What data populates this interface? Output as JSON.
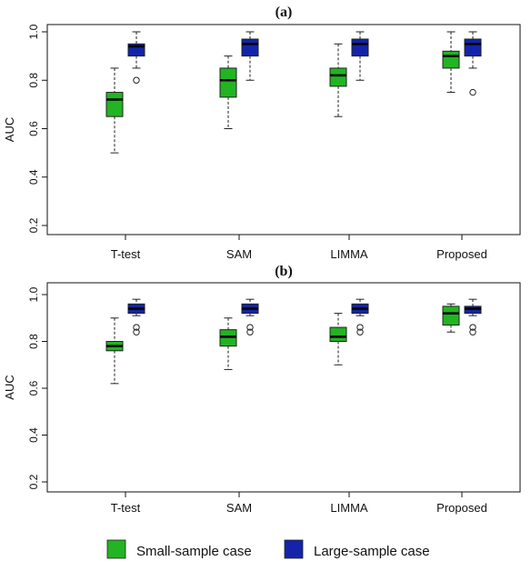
{
  "chart_data": [
    {
      "type": "boxplot",
      "title": "(a)",
      "xlabel": "",
      "ylabel": "AUC",
      "ylim": [
        0.2,
        1.0
      ],
      "yticks": [
        "0.2",
        "0.4",
        "0.6",
        "0.8",
        "1.0"
      ],
      "categories": [
        "T-test",
        "SAM",
        "LIMMA",
        "Proposed"
      ],
      "series": [
        {
          "name": "Small-sample case",
          "color": "#22b422",
          "boxes": [
            {
              "whisker_low": 0.5,
              "q1": 0.65,
              "median": 0.72,
              "q3": 0.75,
              "whisker_high": 0.85,
              "outliers": []
            },
            {
              "whisker_low": 0.6,
              "q1": 0.73,
              "median": 0.8,
              "q3": 0.85,
              "whisker_high": 0.9,
              "outliers": []
            },
            {
              "whisker_low": 0.65,
              "q1": 0.775,
              "median": 0.82,
              "q3": 0.85,
              "whisker_high": 0.95,
              "outliers": []
            },
            {
              "whisker_low": 0.75,
              "q1": 0.85,
              "median": 0.9,
              "q3": 0.92,
              "whisker_high": 1.0,
              "outliers": []
            }
          ]
        },
        {
          "name": "Large-sample case",
          "color": "#1424a8",
          "boxes": [
            {
              "whisker_low": 0.85,
              "q1": 0.9,
              "median": 0.94,
              "q3": 0.95,
              "whisker_high": 1.0,
              "outliers": [
                0.8
              ]
            },
            {
              "whisker_low": 0.8,
              "q1": 0.9,
              "median": 0.95,
              "q3": 0.97,
              "whisker_high": 1.0,
              "outliers": []
            },
            {
              "whisker_low": 0.8,
              "q1": 0.9,
              "median": 0.95,
              "q3": 0.97,
              "whisker_high": 1.0,
              "outliers": []
            },
            {
              "whisker_low": 0.85,
              "q1": 0.9,
              "median": 0.95,
              "q3": 0.97,
              "whisker_high": 1.0,
              "outliers": [
                0.75
              ]
            }
          ]
        }
      ]
    },
    {
      "type": "boxplot",
      "title": "(b)",
      "xlabel": "",
      "ylabel": "AUC",
      "ylim": [
        0.2,
        1.0
      ],
      "yticks": [
        "0.2",
        "0.4",
        "0.6",
        "0.8",
        "1.0"
      ],
      "categories": [
        "T-test",
        "SAM",
        "LIMMA",
        "Proposed"
      ],
      "series": [
        {
          "name": "Small-sample case",
          "color": "#22b422",
          "boxes": [
            {
              "whisker_low": 0.62,
              "q1": 0.76,
              "median": 0.78,
              "q3": 0.8,
              "whisker_high": 0.9,
              "outliers": []
            },
            {
              "whisker_low": 0.68,
              "q1": 0.78,
              "median": 0.82,
              "q3": 0.85,
              "whisker_high": 0.9,
              "outliers": []
            },
            {
              "whisker_low": 0.7,
              "q1": 0.8,
              "median": 0.82,
              "q3": 0.86,
              "whisker_high": 0.92,
              "outliers": []
            },
            {
              "whisker_low": 0.84,
              "q1": 0.87,
              "median": 0.92,
              "q3": 0.95,
              "whisker_high": 0.96,
              "outliers": []
            }
          ]
        },
        {
          "name": "Large-sample case",
          "color": "#1424a8",
          "boxes": [
            {
              "whisker_low": 0.91,
              "q1": 0.92,
              "median": 0.94,
              "q3": 0.96,
              "whisker_high": 0.98,
              "outliers": [
                0.84,
                0.86
              ]
            },
            {
              "whisker_low": 0.91,
              "q1": 0.92,
              "median": 0.94,
              "q3": 0.96,
              "whisker_high": 0.98,
              "outliers": [
                0.84,
                0.86
              ]
            },
            {
              "whisker_low": 0.91,
              "q1": 0.92,
              "median": 0.94,
              "q3": 0.96,
              "whisker_high": 0.98,
              "outliers": [
                0.84,
                0.86
              ]
            },
            {
              "whisker_low": 0.91,
              "q1": 0.92,
              "median": 0.94,
              "q3": 0.95,
              "whisker_high": 0.98,
              "outliers": [
                0.84,
                0.86
              ]
            }
          ]
        }
      ]
    }
  ],
  "legend": {
    "items": [
      {
        "label": "Small-sample case",
        "color": "#22b422"
      },
      {
        "label": "Large-sample case",
        "color": "#1424a8"
      }
    ],
    "placement": "bottom"
  }
}
